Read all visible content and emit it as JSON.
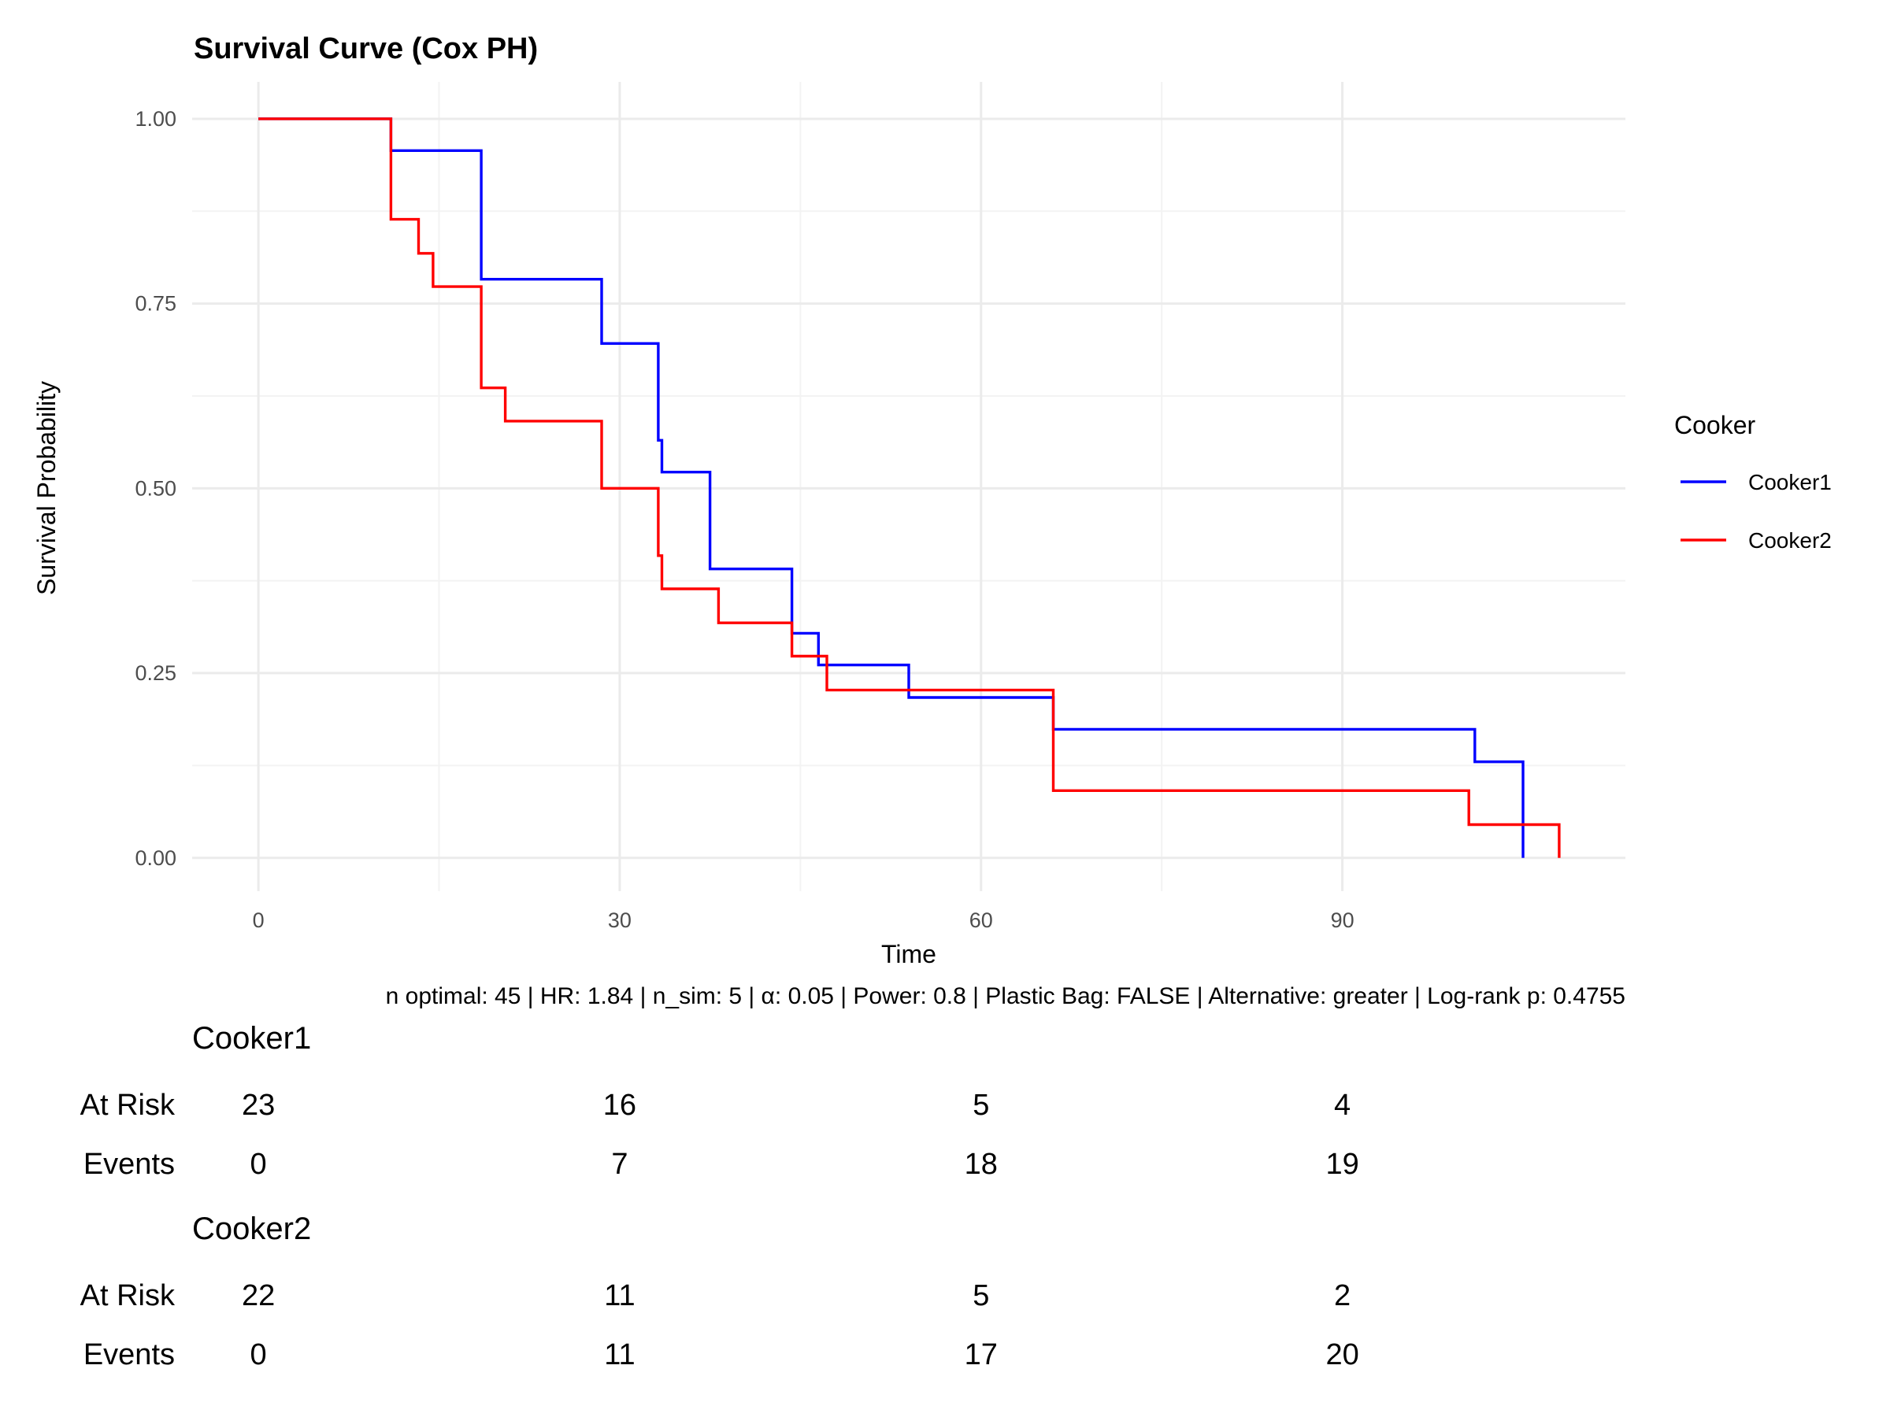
{
  "chart_data": {
    "type": "line",
    "step": true,
    "title": "Survival Curve (Cox PH)",
    "xlabel": "Time",
    "ylabel": "Survival Probability",
    "xlim": [
      -5.5,
      113.5
    ],
    "ylim": [
      -0.045,
      1.05
    ],
    "x_ticks": [
      0,
      30,
      60,
      90
    ],
    "x_tick_labels": [
      "0",
      "30",
      "60",
      "90"
    ],
    "y_ticks": [
      0,
      0.25,
      0.5,
      0.75,
      1.0
    ],
    "y_tick_labels": [
      "0.00",
      "0.25",
      "0.50",
      "0.75",
      "1.00"
    ],
    "grid": true,
    "legend": {
      "title": "Cooker",
      "position": "right"
    },
    "series": [
      {
        "name": "Cooker1",
        "color": "#0000ff",
        "points": [
          [
            0,
            1.0
          ],
          [
            11,
            1.0
          ],
          [
            11,
            0.957
          ],
          [
            18.5,
            0.957
          ],
          [
            18.5,
            0.783
          ],
          [
            28.5,
            0.783
          ],
          [
            28.5,
            0.696
          ],
          [
            33.2,
            0.696
          ],
          [
            33.2,
            0.565
          ],
          [
            33.5,
            0.565
          ],
          [
            33.5,
            0.522
          ],
          [
            37.5,
            0.522
          ],
          [
            37.5,
            0.391
          ],
          [
            44.3,
            0.391
          ],
          [
            44.3,
            0.304
          ],
          [
            46.5,
            0.304
          ],
          [
            46.5,
            0.261
          ],
          [
            54,
            0.261
          ],
          [
            54,
            0.217
          ],
          [
            66,
            0.217
          ],
          [
            66,
            0.174
          ],
          [
            101,
            0.174
          ],
          [
            101,
            0.13
          ],
          [
            105,
            0.13
          ],
          [
            105,
            0.0
          ]
        ]
      },
      {
        "name": "Cooker2",
        "color": "#ff0000",
        "points": [
          [
            0,
            1.0
          ],
          [
            11,
            1.0
          ],
          [
            11,
            0.864
          ],
          [
            13.3,
            0.864
          ],
          [
            13.3,
            0.818
          ],
          [
            14.5,
            0.818
          ],
          [
            14.5,
            0.773
          ],
          [
            18.5,
            0.773
          ],
          [
            18.5,
            0.636
          ],
          [
            20.5,
            0.636
          ],
          [
            20.5,
            0.591
          ],
          [
            28.5,
            0.591
          ],
          [
            28.5,
            0.5
          ],
          [
            33.2,
            0.5
          ],
          [
            33.2,
            0.409
          ],
          [
            33.5,
            0.409
          ],
          [
            33.5,
            0.364
          ],
          [
            38.2,
            0.364
          ],
          [
            38.2,
            0.318
          ],
          [
            44.3,
            0.318
          ],
          [
            44.3,
            0.273
          ],
          [
            47.2,
            0.273
          ],
          [
            47.2,
            0.227
          ],
          [
            66,
            0.227
          ],
          [
            66,
            0.091
          ],
          [
            100.5,
            0.091
          ],
          [
            100.5,
            0.045
          ],
          [
            108,
            0.045
          ],
          [
            108,
            0.0
          ]
        ]
      }
    ],
    "caption": "n optimal: 45 | HR: 1.84 | n_sim: 5 | α: 0.05 | Power: 0.8 | Plastic Bag: FALSE | Alternative: greater | Log-rank p: 0.4755",
    "risk_table": {
      "time_points": [
        0,
        30,
        60,
        90
      ],
      "groups": [
        {
          "name": "Cooker1",
          "rows": [
            {
              "label": "At Risk",
              "values": [
                "23",
                "16",
                "5",
                "4"
              ]
            },
            {
              "label": "Events",
              "values": [
                "0",
                "7",
                "18",
                "19"
              ]
            }
          ]
        },
        {
          "name": "Cooker2",
          "rows": [
            {
              "label": "At Risk",
              "values": [
                "22",
                "11",
                "5",
                "2"
              ]
            },
            {
              "label": "Events",
              "values": [
                "0",
                "11",
                "17",
                "20"
              ]
            }
          ]
        }
      ]
    }
  }
}
